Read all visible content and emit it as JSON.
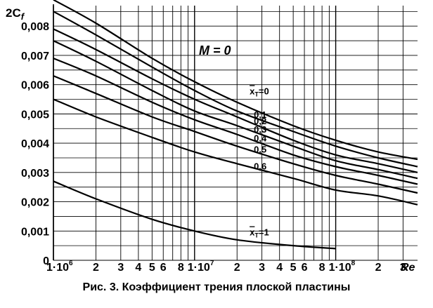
{
  "chart_data": {
    "type": "line",
    "title": "",
    "xlabel": "Re",
    "ylabel_main": "2C",
    "ylabel_sub": "f",
    "x_scale": "log",
    "xlim": [
      1000000,
      380000000
    ],
    "ylim": [
      0,
      0.0087
    ],
    "grid": true,
    "annotation_M": "M = 0",
    "y_ticks": [
      {
        "value": 0,
        "label": "0"
      },
      {
        "value": 0.001,
        "label": "0,001"
      },
      {
        "value": 0.002,
        "label": "0,002"
      },
      {
        "value": 0.003,
        "label": "0,003"
      },
      {
        "value": 0.004,
        "label": "0,004"
      },
      {
        "value": 0.005,
        "label": "0,005"
      },
      {
        "value": 0.006,
        "label": "0,006"
      },
      {
        "value": 0.007,
        "label": "0,007"
      },
      {
        "value": 0.008,
        "label": "0,008"
      }
    ],
    "x_ticks": [
      {
        "value": 1000000,
        "label": "1·10",
        "exp": "6"
      },
      {
        "value": 2000000,
        "label": "2"
      },
      {
        "value": 3000000,
        "label": "3"
      },
      {
        "value": 4000000,
        "label": "4"
      },
      {
        "value": 5000000,
        "label": "5"
      },
      {
        "value": 6000000,
        "label": "6"
      },
      {
        "value": 8000000,
        "label": "8"
      },
      {
        "value": 10000000,
        "label": "1·10",
        "exp": "7"
      },
      {
        "value": 20000000,
        "label": "2"
      },
      {
        "value": 30000000,
        "label": "3"
      },
      {
        "value": 40000000,
        "label": "4"
      },
      {
        "value": 50000000,
        "label": "5"
      },
      {
        "value": 60000000,
        "label": "6"
      },
      {
        "value": 80000000,
        "label": "8"
      },
      {
        "value": 100000000,
        "label": "1·10",
        "exp": "8"
      },
      {
        "value": 200000000,
        "label": "2"
      },
      {
        "value": 300000000,
        "label": "3"
      }
    ],
    "series": [
      {
        "name": "x̄T=0",
        "label_text": "x",
        "label_sub": "T",
        "label_tail": "=0",
        "x": [
          1000000,
          2000000,
          5000000,
          10000000,
          20000000,
          50000000,
          100000000,
          200000000,
          380000000
        ],
        "y": [
          0.0089,
          0.0081,
          0.0069,
          0.0061,
          0.0054,
          0.0046,
          0.0041,
          0.0037,
          0.00345
        ]
      },
      {
        "name": "0,1",
        "label_text": "0,1",
        "x": [
          1000000,
          2000000,
          5000000,
          10000000,
          20000000,
          50000000,
          100000000,
          200000000,
          380000000
        ],
        "y": [
          0.0085,
          0.0077,
          0.0066,
          0.0058,
          0.0051,
          0.0044,
          0.0039,
          0.0035,
          0.0032
        ]
      },
      {
        "name": "0,2",
        "label_text": "0,2",
        "x": [
          1000000,
          2000000,
          5000000,
          10000000,
          20000000,
          50000000,
          100000000,
          200000000,
          380000000
        ],
        "y": [
          0.0079,
          0.0072,
          0.0062,
          0.0055,
          0.0049,
          0.0041,
          0.0036,
          0.0033,
          0.003
        ]
      },
      {
        "name": "0,3",
        "label_text": "0,3",
        "x": [
          1000000,
          2000000,
          5000000,
          10000000,
          20000000,
          50000000,
          100000000,
          200000000,
          380000000
        ],
        "y": [
          0.0075,
          0.0068,
          0.0058,
          0.0051,
          0.0046,
          0.0039,
          0.0034,
          0.0031,
          0.0028
        ]
      },
      {
        "name": "0,4",
        "label_text": "0,4",
        "x": [
          1000000,
          2000000,
          5000000,
          10000000,
          20000000,
          50000000,
          100000000,
          200000000,
          380000000
        ],
        "y": [
          0.0069,
          0.0063,
          0.0054,
          0.0048,
          0.0043,
          0.0036,
          0.0032,
          0.0029,
          0.0026
        ]
      },
      {
        "name": "0,5",
        "label_text": "0,5",
        "x": [
          1000000,
          2000000,
          5000000,
          10000000,
          20000000,
          50000000,
          100000000,
          200000000,
          380000000
        ],
        "y": [
          0.0063,
          0.0057,
          0.0049,
          0.0044,
          0.0039,
          0.0033,
          0.0029,
          0.0026,
          0.0023
        ]
      },
      {
        "name": "0,6",
        "label_text": "0,6",
        "x": [
          1000000,
          2000000,
          5000000,
          10000000,
          20000000,
          50000000,
          100000000,
          200000000,
          380000000
        ],
        "y": [
          0.0055,
          0.0049,
          0.0042,
          0.0037,
          0.0033,
          0.0028,
          0.0024,
          0.0022,
          0.0019
        ]
      },
      {
        "name": "x̄T=1",
        "label_text": "x",
        "label_sub": "T",
        "label_tail": "=1",
        "x": [
          1000000,
          2000000,
          5000000,
          10000000,
          20000000,
          50000000,
          100000000
        ],
        "y": [
          0.0027,
          0.0021,
          0.0014,
          0.001,
          0.0007,
          0.0005,
          0.0004
        ]
      }
    ],
    "caption": "Рис. 3. Коэффициент трения плоской пластины"
  }
}
